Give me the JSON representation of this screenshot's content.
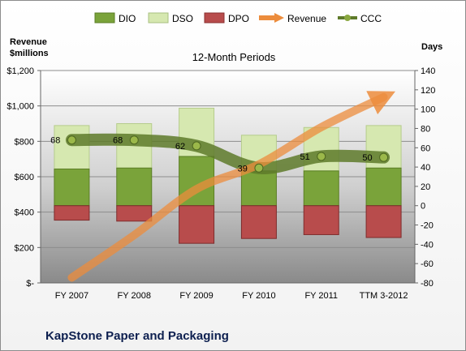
{
  "chart_data": {
    "type": "bar",
    "title": "12-Month Periods",
    "caption": "KapStone Paper and Packaging",
    "y_left_label_line1": "Revenue",
    "y_left_label_line2": "$millions",
    "y_right_label": "Days",
    "categories": [
      "FY 2007",
      "FY 2008",
      "FY 2009",
      "FY 2010",
      "FY 2011",
      "TTM 3-2012"
    ],
    "ylim_left": [
      0,
      1200
    ],
    "left_ticks": [
      "$-",
      "$200",
      "$400",
      "$600",
      "$800",
      "$1,000",
      "$1,200"
    ],
    "ylim_right": [
      -80,
      140
    ],
    "right_ticks": [
      "-80",
      "-60",
      "-40",
      "-20",
      "0",
      "20",
      "40",
      "60",
      "80",
      "100",
      "120",
      "140"
    ],
    "grid": true,
    "legend_position": "top",
    "series": [
      {
        "name": "DIO",
        "axis": "right",
        "kind": "stacked-bar",
        "color": "#7aa33a",
        "values": [
          38,
          39,
          51,
          36,
          36,
          39
        ]
      },
      {
        "name": "DSO",
        "axis": "right",
        "kind": "stacked-bar",
        "color": "#d6e8b0",
        "values": [
          45,
          46,
          50,
          37,
          45,
          44
        ]
      },
      {
        "name": "DPO",
        "axis": "right",
        "kind": "negative-bar",
        "color": "#b84c4c",
        "values": [
          -15,
          -16,
          -39,
          -34,
          -30,
          -33
        ]
      },
      {
        "name": "Revenue",
        "axis": "left",
        "kind": "arrow-line",
        "color": "#ec8c3c",
        "values": [
          30,
          270,
          530,
          670,
          880,
          1050
        ]
      },
      {
        "name": "CCC",
        "axis": "right",
        "kind": "line",
        "color": "#5e7a2a",
        "values": [
          68,
          68,
          62,
          39,
          51,
          50
        ],
        "labels": [
          "68",
          "68",
          "62",
          "39",
          "51",
          "50"
        ]
      }
    ]
  }
}
